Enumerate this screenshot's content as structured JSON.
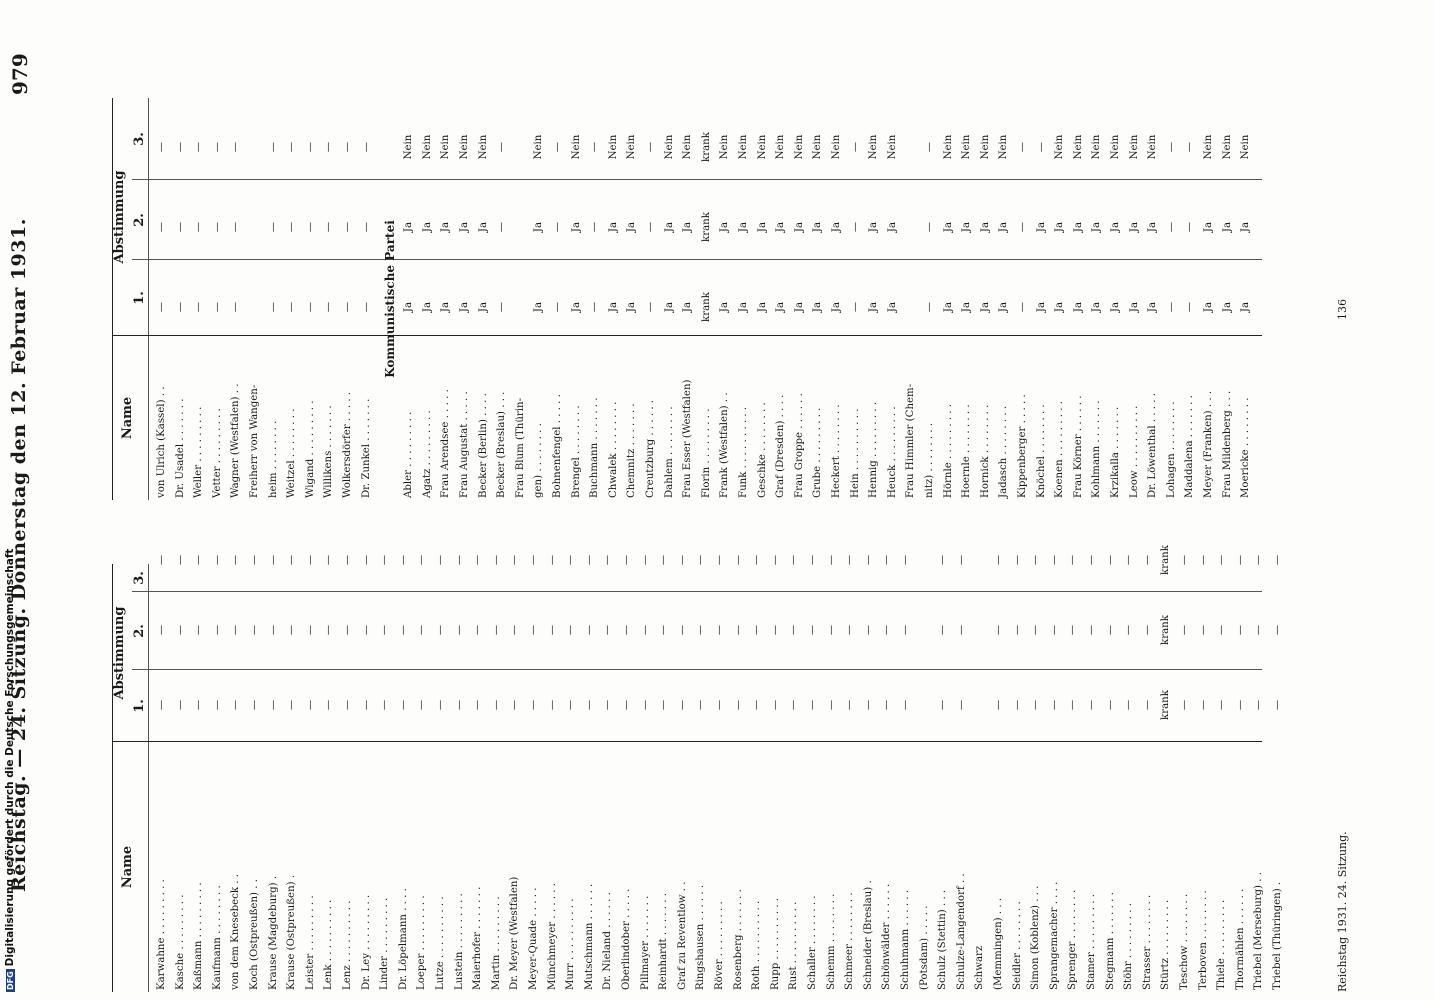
{
  "header": {
    "running_title": "Reichstag. — 24. Sitzung. Donnerstag den 12. Februar 1931.",
    "page_number": "979"
  },
  "table_headers": {
    "name": "Name",
    "abstimmung": "Abstimmung",
    "vote1": "1.",
    "vote2": "2.",
    "vote3": "3."
  },
  "left_table": [
    {
      "name": "Karwahne . . . . . . . . .",
      "v1": "—",
      "v2": "—",
      "v3": "—"
    },
    {
      "name": "Kasche . . . . . . . . .",
      "v1": "—",
      "v2": "—",
      "v3": "—"
    },
    {
      "name": "Kaßmann . . . . . . . . .",
      "v1": "—",
      "v2": "—",
      "v3": "—"
    },
    {
      "name": "Kaufmann . . . . . . . .",
      "v1": "—",
      "v2": "—",
      "v3": "—"
    },
    {
      "name": "von dem Knesebeck . .",
      "v1": "—",
      "v2": "—",
      "v3": "—"
    },
    {
      "name": "Koch (Ostpreußen) . .",
      "v1": "—",
      "v2": "—",
      "v3": "—"
    },
    {
      "name": "Krause (Magdeburg) .",
      "v1": "—",
      "v2": "—",
      "v3": "—"
    },
    {
      "name": "Krause (Ostpreußen) .",
      "v1": "—",
      "v2": "—",
      "v3": "—"
    },
    {
      "name": "Leister . . . . . . . . .",
      "v1": "—",
      "v2": "—",
      "v3": "—"
    },
    {
      "name": "Lenk . . . . . . . . . .",
      "v1": "—",
      "v2": "—",
      "v3": "—"
    },
    {
      "name": "Lenz . . . . . . . . . .",
      "v1": "—",
      "v2": "—",
      "v3": "—"
    },
    {
      "name": "Dr. Ley . . . . . . . . .",
      "v1": "—",
      "v2": "—",
      "v3": "—"
    },
    {
      "name": "Linder . . . . . . . . .",
      "v1": "—",
      "v2": "—",
      "v3": "—"
    },
    {
      "name": "Dr. Löpelmann . . . .",
      "v1": "—",
      "v2": "—",
      "v3": "—"
    },
    {
      "name": "Loeper . . . . . . . . .",
      "v1": "—",
      "v2": "—",
      "v3": "—"
    },
    {
      "name": "Lutze . . . . . . . . . .",
      "v1": "—",
      "v2": "—",
      "v3": "—"
    },
    {
      "name": "Lustein . . . . . . . . .",
      "v1": "—",
      "v2": "—",
      "v3": "—"
    },
    {
      "name": "Maierhofer . . . . . . .",
      "v1": "—",
      "v2": "—",
      "v3": "—"
    },
    {
      "name": "Martin . . . . . . . . .",
      "v1": "—",
      "v2": "—",
      "v3": "—"
    },
    {
      "name": "Dr. Meyer (Westfalen)",
      "v1": "—",
      "v2": "—",
      "v3": "—"
    },
    {
      "name": "Meyer-Quade . . . . .",
      "v1": "—",
      "v2": "—",
      "v3": "—"
    },
    {
      "name": "Münchmeyer . . . . . .",
      "v1": "—",
      "v2": "—",
      "v3": "—"
    },
    {
      "name": "Murr . . . . . . . . . .",
      "v1": "—",
      "v2": "—",
      "v3": "—"
    },
    {
      "name": "Mutschmann . . . . . .",
      "v1": "—",
      "v2": "—",
      "v3": "—"
    },
    {
      "name": "Dr. Nieland . . . . . .",
      "v1": "—",
      "v2": "—",
      "v3": "—"
    },
    {
      "name": "Oberlindober . . . . .",
      "v1": "—",
      "v2": "—",
      "v3": "—"
    },
    {
      "name": "Pillmayer . . . . . . .",
      "v1": "—",
      "v2": "—",
      "v3": "—"
    },
    {
      "name": "Reinhardt . . . . . . .",
      "v1": "—",
      "v2": "—",
      "v3": "—"
    },
    {
      "name": "Graf zu Reventlow . .",
      "v1": "—",
      "v2": "—",
      "v3": "—"
    },
    {
      "name": "Ringshausen . . . . . .",
      "v1": "—",
      "v2": "—",
      "v3": "—"
    },
    {
      "name": "Röver . . . . . . . . .",
      "v1": "—",
      "v2": "—",
      "v3": "—"
    },
    {
      "name": "Rosenberg . . . . . . .",
      "v1": "—",
      "v2": "—",
      "v3": "—"
    },
    {
      "name": "Roth . . . . . . . . . .",
      "v1": "—",
      "v2": "—",
      "v3": "—"
    },
    {
      "name": "Rupp . . . . . . . . . .",
      "v1": "—",
      "v2": "—",
      "v3": "—"
    },
    {
      "name": "Rust . . . . . . . . . .",
      "v1": "—",
      "v2": "—",
      "v3": "—"
    },
    {
      "name": "Schaller . . . . . . . .",
      "v1": "—",
      "v2": "—",
      "v3": "—"
    },
    {
      "name": "Schemm . . . . . . . .",
      "v1": "—",
      "v2": "—",
      "v3": "—"
    },
    {
      "name": "Schmeer . . . . . . . .",
      "v1": "—",
      "v2": "—",
      "v3": "—"
    },
    {
      "name": "Schneider (Breslau) .",
      "v1": "—",
      "v2": "—",
      "v3": "—"
    },
    {
      "name": "Schönwälder . . . . . .",
      "v1": "—",
      "v2": "—",
      "v3": "—"
    },
    {
      "name": "Schuhmann . . . . . .",
      "v1": "—",
      "v2": "—",
      "v3": "—"
    },
    {
      "name": "(Potsdam) . . . . .",
      "v1": "",
      "v2": "",
      "v3": ""
    },
    {
      "name": "Schulz (Stettin) . . .",
      "v1": "—",
      "v2": "—",
      "v3": "—"
    },
    {
      "name": "Schulze-Langendorf . .",
      "v1": "—",
      "v2": "—",
      "v3": "—"
    },
    {
      "name": "Schwarz",
      "v1": "",
      "v2": "",
      "v3": ""
    },
    {
      "name": "(Memmingen) . . .",
      "v1": "—",
      "v2": "—",
      "v3": "—"
    },
    {
      "name": "Seidler . . . . . . . .",
      "v1": "—",
      "v2": "—",
      "v3": "—"
    },
    {
      "name": "Simon (Koblenz) . . .",
      "v1": "—",
      "v2": "—",
      "v3": "—"
    },
    {
      "name": "Sprangemacher . . . .",
      "v1": "—",
      "v2": "—",
      "v3": "—"
    },
    {
      "name": "Sprenger . . . . . . . .",
      "v1": "—",
      "v2": "—",
      "v3": "—"
    },
    {
      "name": "Stamer . . . . . . . . .",
      "v1": "—",
      "v2": "—",
      "v3": "—"
    },
    {
      "name": "Stegmann . . . . . . .",
      "v1": "—",
      "v2": "—",
      "v3": "—"
    },
    {
      "name": "Stöhr . . . . . . . . .",
      "v1": "—",
      "v2": "—",
      "v3": "—"
    },
    {
      "name": "Strasser . . . . . . . .",
      "v1": "—",
      "v2": "—",
      "v3": "—"
    },
    {
      "name": "Stürtz . . . . . . . . .",
      "v1": "krank",
      "v2": "krank",
      "v3": "krank"
    },
    {
      "name": "Teschow . . . . . . . .",
      "v1": "—",
      "v2": "—",
      "v3": "—"
    },
    {
      "name": "Terboven . . . . . . . .",
      "v1": "—",
      "v2": "—",
      "v3": "—"
    },
    {
      "name": "Thiele . . . . . . . . .",
      "v1": "—",
      "v2": "—",
      "v3": "—"
    },
    {
      "name": "Thormählen . . . . . .",
      "v1": "—",
      "v2": "—",
      "v3": "—"
    },
    {
      "name": "Triebel (Merseburg) . .",
      "v1": "—",
      "v2": "—",
      "v3": "—"
    },
    {
      "name": "Triebel (Thüringen) .",
      "v1": "—",
      "v2": "—",
      "v3": "—"
    }
  ],
  "right_table_top": [
    {
      "name": "von Ulrich (Kassel) . .",
      "v1": "—",
      "v2": "—",
      "v3": "—"
    },
    {
      "name": "Dr. Usadel . . . . . . .",
      "v1": "—",
      "v2": "—",
      "v3": "—"
    },
    {
      "name": "Weller . . . . . . . . .",
      "v1": "—",
      "v2": "—",
      "v3": "—"
    },
    {
      "name": "Vetter . . . . . . . . .",
      "v1": "—",
      "v2": "—",
      "v3": "—"
    },
    {
      "name": "Wagner (Westfalen) . .",
      "v1": "—",
      "v2": "—",
      "v3": "—"
    },
    {
      "name": "Freiherr von Wangen-",
      "v1": "",
      "v2": "",
      "v3": ""
    },
    {
      "name": "heim . . . . . . . .",
      "v1": "—",
      "v2": "—",
      "v3": "—"
    },
    {
      "name": "Weitzel . . . . . . . .",
      "v1": "—",
      "v2": "—",
      "v3": "—"
    },
    {
      "name": "Wigand . . . . . . . . .",
      "v1": "—",
      "v2": "—",
      "v3": "—"
    },
    {
      "name": "Willikens . . . . . . .",
      "v1": "—",
      "v2": "—",
      "v3": "—"
    },
    {
      "name": "Wolkersdörfer . . . . .",
      "v1": "—",
      "v2": "—",
      "v3": "—"
    },
    {
      "name": "Dr. Zunkel . . . . . . .",
      "v1": "—",
      "v2": "—",
      "v3": "—"
    }
  ],
  "section_title": "Kommunistische Partei",
  "right_table_kpd": [
    {
      "name": "Abler . . . . . . . . .",
      "v1": "Ja",
      "v2": "Ja",
      "v3": "Nein"
    },
    {
      "name": "Agatz . . . . . . . . .",
      "v1": "Ja",
      "v2": "Ja",
      "v3": "Nein"
    },
    {
      "name": "Frau Arendsee . . . . .",
      "v1": "Ja",
      "v2": "Ja",
      "v3": "Nein"
    },
    {
      "name": "Frau Augustat . . . . .",
      "v1": "Ja",
      "v2": "Ja",
      "v3": "Nein"
    },
    {
      "name": "Becker (Berlin) . . . .",
      "v1": "Ja",
      "v2": "Ja",
      "v3": "Nein"
    },
    {
      "name": "Becker (Breslau) . . .",
      "v1": "—",
      "v2": "—",
      "v3": "—"
    },
    {
      "name": "Frau Blum (Thürin-",
      "v1": "",
      "v2": "",
      "v3": ""
    },
    {
      "name": "gen) . . . . . . . .",
      "v1": "Ja",
      "v2": "Ja",
      "v3": "Nein"
    },
    {
      "name": "Bohnenfengel . . . . .",
      "v1": "—",
      "v2": "—",
      "v3": "—"
    },
    {
      "name": "Brengel . . . . . . . .",
      "v1": "Ja",
      "v2": "Ja",
      "v3": "Nein"
    },
    {
      "name": "Buchmann . . . . . . .",
      "v1": "—",
      "v2": "—",
      "v3": "—"
    },
    {
      "name": "Chwalek . . . . . . . .",
      "v1": "Ja",
      "v2": "Ja",
      "v3": "Nein"
    },
    {
      "name": "Chemnitz . . . . . . .",
      "v1": "Ja",
      "v2": "Ja",
      "v3": "Nein"
    },
    {
      "name": "Creutzburg . . . . . .",
      "v1": "—",
      "v2": "—",
      "v3": "—"
    },
    {
      "name": "Dahlem . . . . . . . .",
      "v1": "Ja",
      "v2": "Ja",
      "v3": "Nein"
    },
    {
      "name": "Frau Esser (Westfalen)",
      "v1": "Ja",
      "v2": "Ja",
      "v3": "Nein"
    },
    {
      "name": "Florin . . . . . . . . .",
      "v1": "krank",
      "v2": "krank",
      "v3": "krank"
    },
    {
      "name": "Frank (Westfalen) . .",
      "v1": "Ja",
      "v2": "Ja",
      "v3": "Nein"
    },
    {
      "name": "Funk . . . . . . . . . .",
      "v1": "Ja",
      "v2": "Ja",
      "v3": "Nein"
    },
    {
      "name": "Geschke . . . . . . . .",
      "v1": "Ja",
      "v2": "Ja",
      "v3": "Nein"
    },
    {
      "name": "Graf (Dresden) . . . .",
      "v1": "Ja",
      "v2": "Ja",
      "v3": "Nein"
    },
    {
      "name": "Frau Groppe . . . . . .",
      "v1": "Ja",
      "v2": "Ja",
      "v3": "Nein"
    },
    {
      "name": "Grube . . . . . . . . .",
      "v1": "Ja",
      "v2": "Ja",
      "v3": "Nein"
    },
    {
      "name": "Heckert . . . . . . . .",
      "v1": "Ja",
      "v2": "Ja",
      "v3": "Nein"
    },
    {
      "name": "Hein . . . . . . . . . .",
      "v1": "—",
      "v2": "—",
      "v3": "—"
    },
    {
      "name": "Hennig . . . . . . . . .",
      "v1": "Ja",
      "v2": "Ja",
      "v3": "Nein"
    },
    {
      "name": "Heuck . . . . . . . . .",
      "v1": "Ja",
      "v2": "Ja",
      "v3": "Nein"
    },
    {
      "name": "Frau Himmler (Chem-",
      "v1": "",
      "v2": "",
      "v3": ""
    },
    {
      "name": "nitz) . . . . . . . .",
      "v1": "—",
      "v2": "—",
      "v3": "—"
    },
    {
      "name": "Hörnle . . . . . . . . .",
      "v1": "Ja",
      "v2": "Ja",
      "v3": "Nein"
    },
    {
      "name": "Hoernle . . . . . . . .",
      "v1": "Ja",
      "v2": "Ja",
      "v3": "Nein"
    },
    {
      "name": "Hornick . . . . . . . .",
      "v1": "Ja",
      "v2": "Ja",
      "v3": "Nein"
    },
    {
      "name": "Jadasch . . . . . . . .",
      "v1": "Ja",
      "v2": "Ja",
      "v3": "Nein"
    },
    {
      "name": "Kippenberger . . . . .",
      "v1": "—",
      "v2": "—",
      "v3": "—"
    },
    {
      "name": "Knöchel . . . . . . . .",
      "v1": "Ja",
      "v2": "Ja",
      "v3": "—"
    },
    {
      "name": "Koenen . . . . . . . . .",
      "v1": "Ja",
      "v2": "Ja",
      "v3": "Nein"
    },
    {
      "name": "Frau Körner . . . . . .",
      "v1": "Ja",
      "v2": "Ja",
      "v3": "Nein"
    },
    {
      "name": "Kohlmann . . . . . . .",
      "v1": "Ja",
      "v2": "Ja",
      "v3": "Nein"
    },
    {
      "name": "Krzikalla . . . . . . .",
      "v1": "Ja",
      "v2": "Ja",
      "v3": "Nein"
    },
    {
      "name": "Leow . . . . . . . . . .",
      "v1": "Ja",
      "v2": "Ja",
      "v3": "Nein"
    },
    {
      "name": "Dr. Löwenthal . . . . .",
      "v1": "Ja",
      "v2": "Ja",
      "v3": "Nein"
    },
    {
      "name": "Lohagen . . . . . . . .",
      "v1": "—",
      "v2": "—",
      "v3": "—"
    },
    {
      "name": "Maddalena . . . . . . .",
      "v1": "—",
      "v2": "—",
      "v3": "—"
    },
    {
      "name": "Meyer (Franken) . . .",
      "v1": "Ja",
      "v2": "Ja",
      "v3": "Nein"
    },
    {
      "name": "Frau Mildenberg . . .",
      "v1": "Ja",
      "v2": "Ja",
      "v3": "Nein"
    },
    {
      "name": "Moericke . . . . . . . .",
      "v1": "Ja",
      "v2": "Ja",
      "v3": "Nein"
    }
  ],
  "footer": {
    "left": "Reichstag 1931. 24. Sitzung.",
    "right": "136"
  },
  "digitization_note": "Digitalisierung gefördert durch die Deutsche Forschungsgemeinschaft",
  "dfg_logo": "DFG"
}
